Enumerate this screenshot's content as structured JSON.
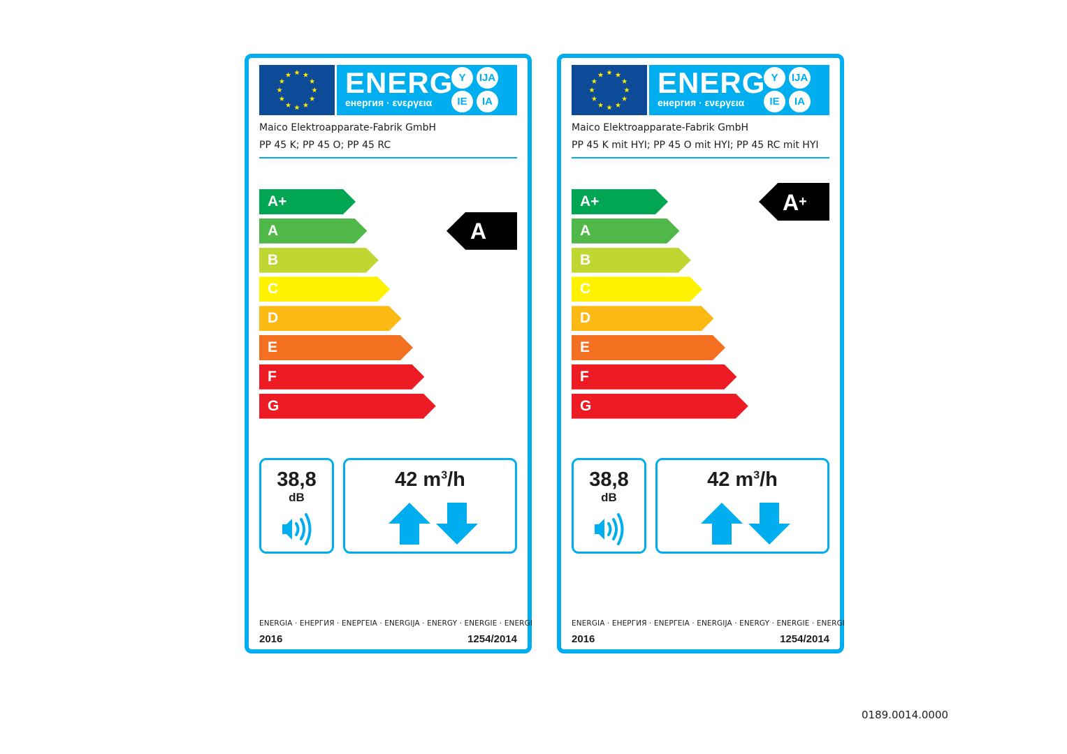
{
  "colors": {
    "frame": "#00aeef",
    "flag": "#0d4a97",
    "star": "#ffed00"
  },
  "scale": [
    {
      "cls": "A+",
      "color": "#00a651"
    },
    {
      "cls": "A",
      "color": "#50b848"
    },
    {
      "cls": "B",
      "color": "#bfd730"
    },
    {
      "cls": "C",
      "color": "#fff200"
    },
    {
      "cls": "D",
      "color": "#fdb913"
    },
    {
      "cls": "E",
      "color": "#f37021"
    },
    {
      "cls": "F",
      "color": "#ed1c24"
    },
    {
      "cls": "G",
      "color": "#ed1c24"
    }
  ],
  "labels": [
    {
      "energ": "ENERG",
      "subtitle": "енергия · ενεργεια",
      "langs": [
        "Y",
        "IJA",
        "IE",
        "IA"
      ],
      "manufacturer": "Maico Elektroapparate-Fabrik GmbH",
      "model": "PP 45 K; PP 45 O; PP 45 RC",
      "rating": "A",
      "rating_suffix": "",
      "noise_value": "38,8",
      "noise_unit": "dB",
      "flow_value": "42 m",
      "flow_exp": "3",
      "flow_unit": "/h",
      "footer": "ENERGIA · ЕНЕРГИЯ · ΕΝΕΡΓΕΙΑ · ENERGIJA · ENERGY · ENERGIE · ENERGI",
      "year": "2016",
      "regulation": "1254/2014"
    },
    {
      "energ": "ENERG",
      "subtitle": "енергия · ενεργεια",
      "langs": [
        "Y",
        "IJA",
        "IE",
        "IA"
      ],
      "manufacturer": "Maico Elektroapparate-Fabrik GmbH",
      "model": "PP 45 K mit HYI; PP 45 O mit HYI; PP 45 RC mit HYI",
      "rating": "A",
      "rating_suffix": "+",
      "noise_value": "38,8",
      "noise_unit": "dB",
      "flow_value": "42 m",
      "flow_exp": "3",
      "flow_unit": "/h",
      "footer": "ENERGIA · ЕНЕРГИЯ · ΕΝΕΡΓΕΙΑ · ENERGIJA · ENERGY · ENERGIE · ENERGI",
      "year": "2016",
      "regulation": "1254/2014"
    }
  ],
  "document_code": "0189.0014.0000"
}
